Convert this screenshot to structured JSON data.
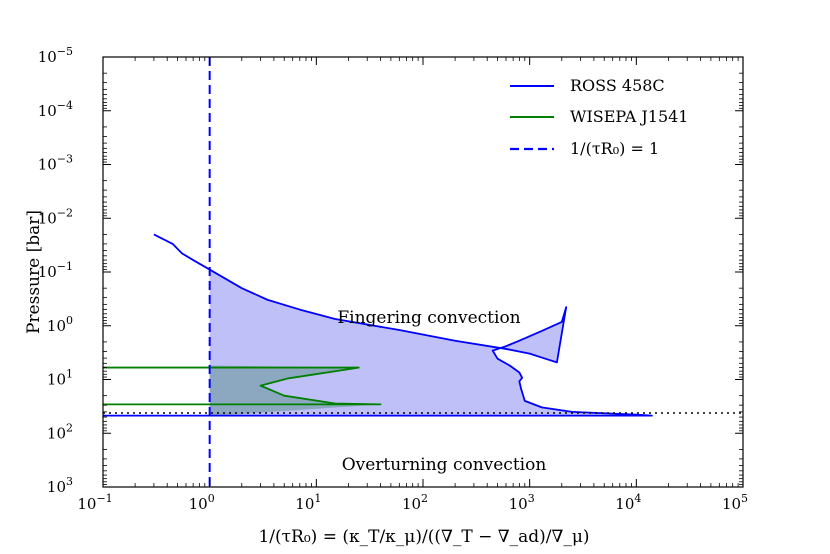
{
  "chart_data": {
    "type": "line",
    "title": "",
    "xlabel": "1/(τR₀) = (κ_T/κ_μ)/((∇_T − ∇_ad)/∇_μ)",
    "ylabel": "Pressure [bar]",
    "xscale": "log",
    "yscale": "log",
    "xlim": [
      0.1,
      100000
    ],
    "ylim": [
      1000,
      1e-05
    ],
    "y_inverted": true,
    "x_ticks": [
      {
        "base": "10",
        "exp": "−1",
        "value": 0.1
      },
      {
        "base": "10",
        "exp": "0",
        "value": 1
      },
      {
        "base": "10",
        "exp": "1",
        "value": 10
      },
      {
        "base": "10",
        "exp": "2",
        "value": 100
      },
      {
        "base": "10",
        "exp": "3",
        "value": 1000
      },
      {
        "base": "10",
        "exp": "4",
        "value": 10000
      },
      {
        "base": "10",
        "exp": "5",
        "value": 100000
      }
    ],
    "y_ticks": [
      {
        "base": "10",
        "exp": "−5",
        "value": 1e-05
      },
      {
        "base": "10",
        "exp": "−4",
        "value": 0.0001
      },
      {
        "base": "10",
        "exp": "−3",
        "value": 0.001
      },
      {
        "base": "10",
        "exp": "−2",
        "value": 0.01
      },
      {
        "base": "10",
        "exp": "−1",
        "value": 0.1
      },
      {
        "base": "10",
        "exp": "0",
        "value": 1
      },
      {
        "base": "10",
        "exp": "1",
        "value": 10
      },
      {
        "base": "10",
        "exp": "2",
        "value": 100
      },
      {
        "base": "10",
        "exp": "3",
        "value": 1000
      }
    ],
    "series": [
      {
        "name": "ROSS 458C",
        "color": "#0000ff",
        "style": "solid",
        "points": [
          [
            0.3,
            0.02
          ],
          [
            0.45,
            0.03
          ],
          [
            0.55,
            0.045
          ],
          [
            0.7,
            0.06
          ],
          [
            1.0,
            0.09
          ],
          [
            2.0,
            0.2
          ],
          [
            3.5,
            0.33
          ],
          [
            7,
            0.5
          ],
          [
            15,
            0.75
          ],
          [
            60,
            1.2
          ],
          [
            200,
            1.9
          ],
          [
            600,
            2.7
          ],
          [
            1000,
            3.3
          ],
          [
            1400,
            4.1
          ],
          [
            1800,
            4.8
          ],
          [
            2200,
            0.45
          ],
          [
            2000,
            0.85
          ],
          [
            1300,
            1.25
          ],
          [
            800,
            1.9
          ],
          [
            600,
            2.4
          ],
          [
            450,
            2.9
          ],
          [
            500,
            4.1
          ],
          [
            650,
            5.5
          ],
          [
            800,
            7.4
          ],
          [
            850,
            9.3
          ],
          [
            800,
            10.8
          ],
          [
            830,
            14.8
          ],
          [
            900,
            25
          ],
          [
            1300,
            33
          ],
          [
            2500,
            40
          ],
          [
            10000,
            45
          ],
          [
            14000,
            47
          ],
          [
            2000,
            47
          ],
          [
            10,
            47
          ],
          [
            0.1,
            47
          ]
        ],
        "fill_from_x": 1
      },
      {
        "name": "WISEPA J1541",
        "color": "#008000",
        "style": "solid",
        "points": [
          [
            0.1,
            6
          ],
          [
            25,
            6
          ],
          [
            5.5,
            9.5
          ],
          [
            3,
            13
          ],
          [
            5,
            20
          ],
          [
            15,
            28
          ],
          [
            40,
            29
          ],
          [
            0.1,
            29
          ]
        ],
        "fill_color": "#4d8a7a"
      },
      {
        "name": "1/(τR₀) = 1",
        "color": "#0000ff",
        "style": "dashed",
        "x_value": 1
      }
    ],
    "reference_lines": [
      {
        "orientation": "horizontal",
        "y": 42,
        "style": "dotted",
        "color": "#000000"
      }
    ],
    "annotations": [
      {
        "text": "Fingering convection",
        "x": 16,
        "y": 1.4
      },
      {
        "text": "Overturning convection",
        "x": 16,
        "y": 420
      }
    ],
    "legend": {
      "location": "top-right",
      "entries": [
        "ROSS 458C",
        "WISEPA J1541",
        "1/(τR₀) = 1"
      ]
    }
  }
}
